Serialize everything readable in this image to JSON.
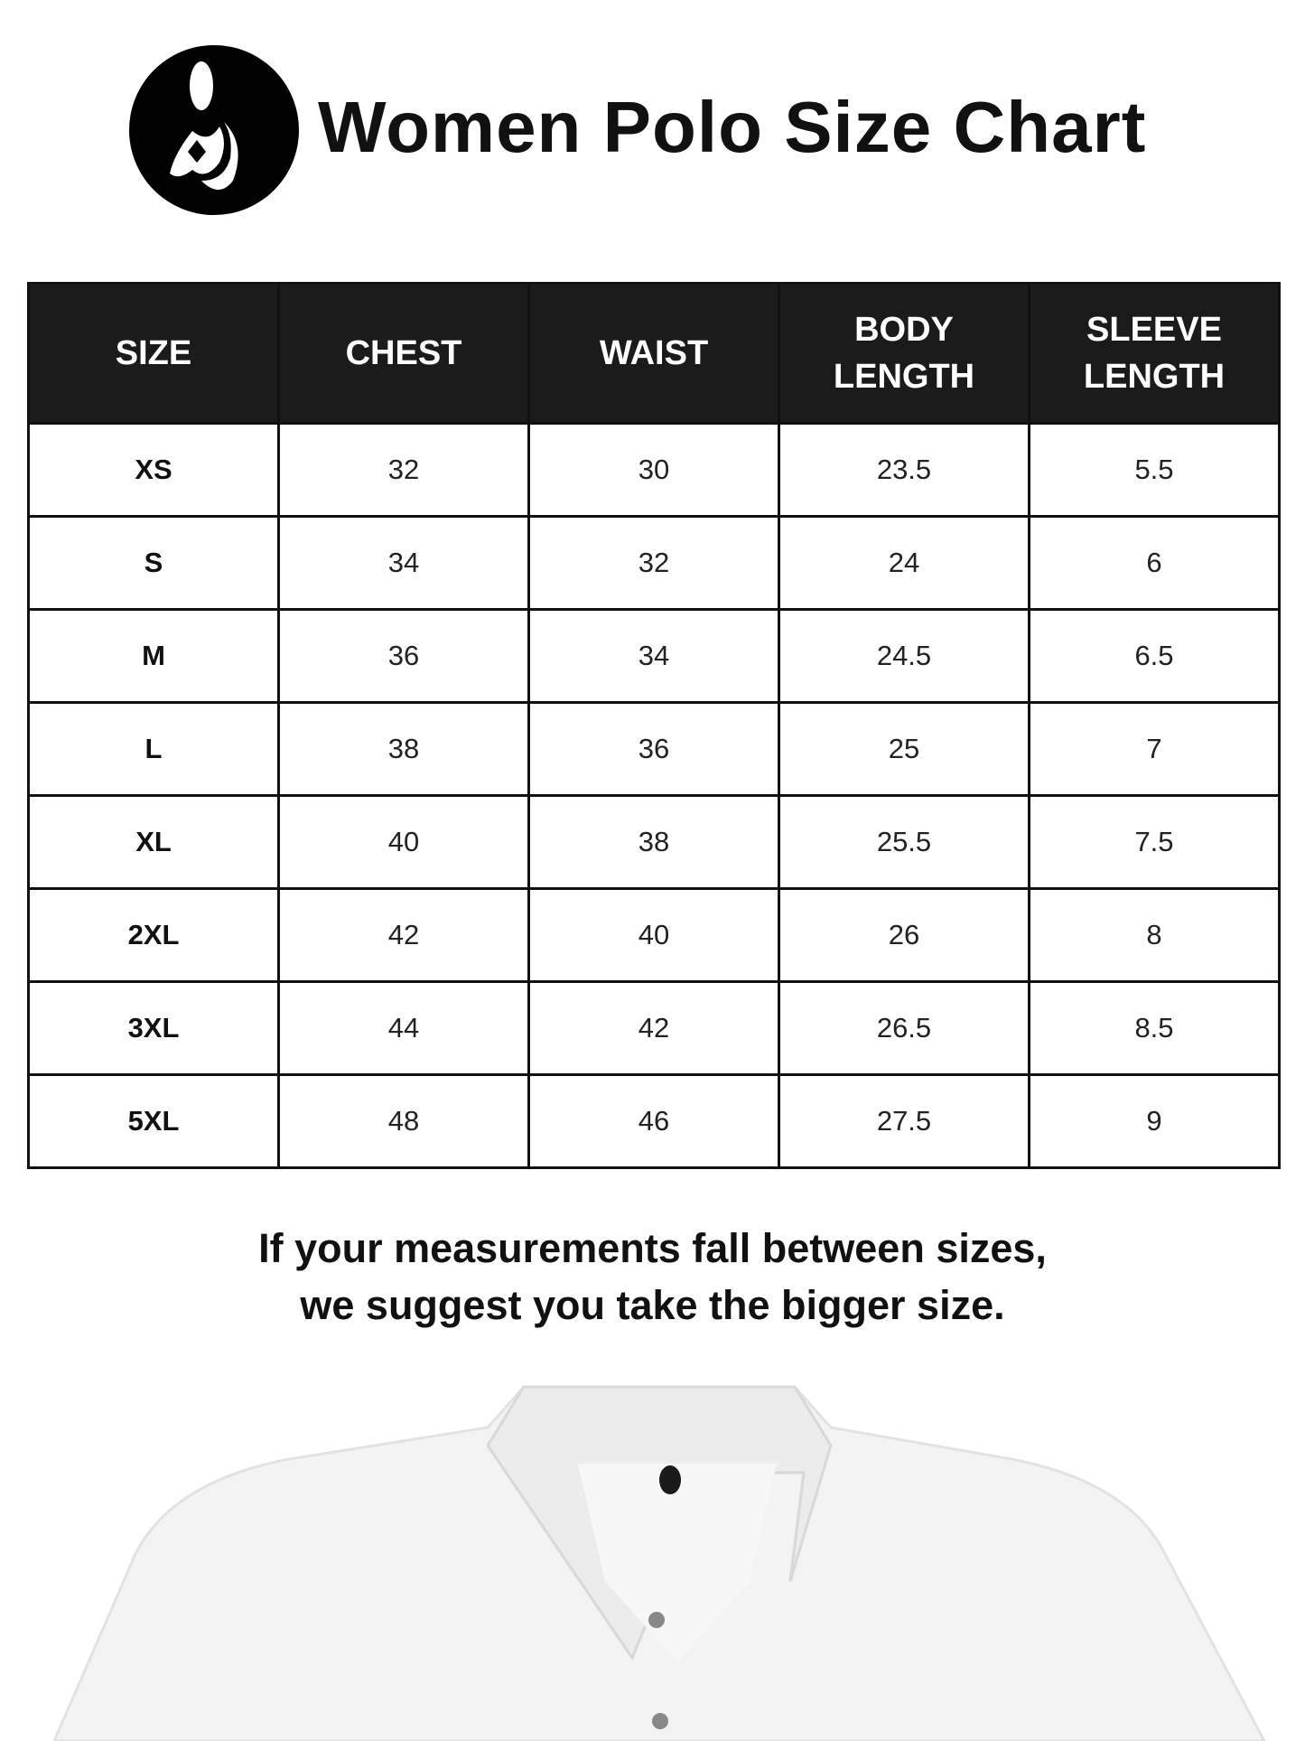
{
  "header": {
    "title": "Women Polo Size Chart",
    "logo": "mother-child-logo-icon"
  },
  "table": {
    "columns": [
      [
        "SIZE"
      ],
      [
        "CHEST"
      ],
      [
        "WAIST"
      ],
      [
        "BODY",
        "LENGTH"
      ],
      [
        "SLEEVE",
        "LENGTH"
      ]
    ],
    "rows": [
      [
        "XS",
        "32",
        "30",
        "23.5",
        "5.5"
      ],
      [
        "S",
        "34",
        "32",
        "24",
        "6"
      ],
      [
        "M",
        "36",
        "34",
        "24.5",
        "6.5"
      ],
      [
        "L",
        "38",
        "36",
        "25",
        "7"
      ],
      [
        "XL",
        "40",
        "38",
        "25.5",
        "7.5"
      ],
      [
        "2XL",
        "42",
        "40",
        "26",
        "8"
      ],
      [
        "3XL",
        "44",
        "42",
        "26.5",
        "8.5"
      ],
      [
        "5XL",
        "48",
        "46",
        "27.5",
        "9"
      ]
    ]
  },
  "note": {
    "line1": "If your measurements fall between sizes,",
    "line2": "we suggest you take the bigger size."
  },
  "image": {
    "subject": "white-polo-shirt"
  }
}
